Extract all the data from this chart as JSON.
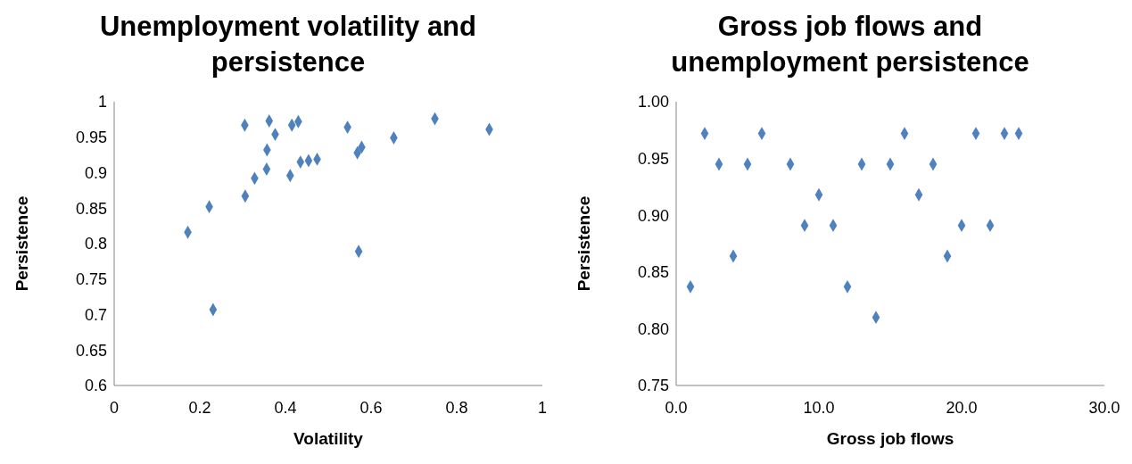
{
  "chart_data": [
    {
      "type": "scatter",
      "title": "Unemployment volatility and persistence",
      "xlabel": "Volatility",
      "ylabel": "Persistence",
      "marker": "diamond",
      "grid": false,
      "legend": false,
      "xlim": [
        0,
        1
      ],
      "xticks": [
        0,
        {
          "value": 0.2,
          "label": "0.2"
        },
        {
          "value": 0.4,
          "label": "0.4"
        },
        {
          "value": 0.6,
          "label": "0.6"
        },
        {
          "value": 0.8,
          "label": "0.8"
        },
        1
      ],
      "ylim": [
        0.6,
        1
      ],
      "yticks": [
        {
          "value": 0.6,
          "label": "0.6"
        },
        {
          "value": 0.65,
          "label": "0.65"
        },
        {
          "value": 0.7,
          "label": "0.7"
        },
        {
          "value": 0.75,
          "label": "0.75"
        },
        {
          "value": 0.8,
          "label": "0.8"
        },
        {
          "value": 0.85,
          "label": "0.85"
        },
        {
          "value": 0.9,
          "label": "0.9"
        },
        {
          "value": 0.95,
          "label": "0.95"
        },
        1
      ],
      "x": [
        0.305,
        0.362,
        0.376,
        0.415,
        0.43,
        0.357,
        0.356,
        0.328,
        0.306,
        0.222,
        0.172,
        0.231,
        0.411,
        0.435,
        0.454,
        0.474,
        0.545,
        0.578,
        0.568,
        0.571,
        0.653,
        0.749,
        0.876
      ],
      "series": [
        {
          "color": "#4f81bd",
          "values": [
            0.967,
            0.973,
            0.954,
            0.967,
            0.972,
            0.932,
            0.905,
            0.892,
            0.867,
            0.852,
            0.816,
            0.707,
            0.896,
            0.915,
            0.917,
            0.919,
            0.964,
            0.936,
            0.928,
            0.789,
            0.949,
            0.976,
            0.961
          ]
        }
      ]
    },
    {
      "type": "scatter",
      "title": "Gross job flows and unemployment  persistence",
      "xlabel": "Gross job flows",
      "ylabel": "Persistence",
      "marker": "diamond",
      "grid": false,
      "legend": false,
      "xlim": [
        0,
        30
      ],
      "xticks": [
        {
          "value": 0,
          "label": "0.0"
        },
        {
          "value": 10,
          "label": "10.0"
        },
        {
          "value": 20,
          "label": "20.0"
        },
        {
          "value": 30,
          "label": "30.0"
        }
      ],
      "ylim": [
        0.75,
        1
      ],
      "yticks": [
        {
          "value": 0.75,
          "label": "0.75"
        },
        {
          "value": 0.8,
          "label": "0.80"
        },
        {
          "value": 0.85,
          "label": "0.85"
        },
        {
          "value": 0.9,
          "label": "0.90"
        },
        {
          "value": 0.95,
          "label": "0.95"
        },
        {
          "value": 1,
          "label": "1.00"
        }
      ],
      "x": [
        1,
        2,
        3,
        4,
        5,
        6,
        8,
        9,
        10,
        11,
        12,
        13,
        14,
        15,
        16,
        17,
        18,
        19,
        20,
        21,
        22,
        23,
        24
      ],
      "series": [
        {
          "color": "#4f81bd",
          "values": [
            0.837,
            0.972,
            0.945,
            0.864,
            0.945,
            0.972,
            0.945,
            0.891,
            0.918,
            0.891,
            0.837,
            0.945,
            0.81,
            0.945,
            0.972,
            0.918,
            0.945,
            0.864,
            0.891,
            0.972,
            0.891,
            0.972,
            0.972
          ]
        }
      ]
    }
  ]
}
